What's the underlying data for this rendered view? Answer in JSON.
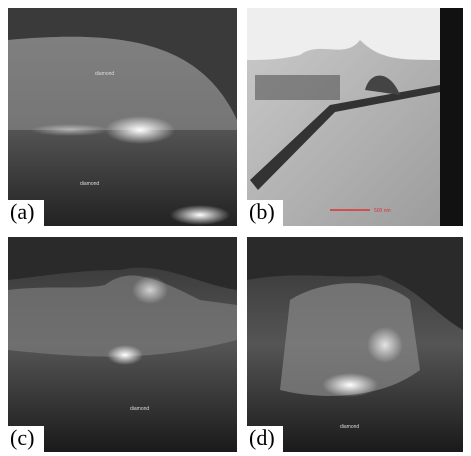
{
  "panels": [
    {
      "label": "(a)",
      "annotations": [
        "diamond",
        "diamond"
      ]
    },
    {
      "label": "(b)",
      "scale_bar": "500 nm"
    },
    {
      "label": "(c)",
      "annotations": [
        "diamond"
      ]
    },
    {
      "label": "(d)",
      "annotations": [
        "diamond"
      ]
    }
  ]
}
